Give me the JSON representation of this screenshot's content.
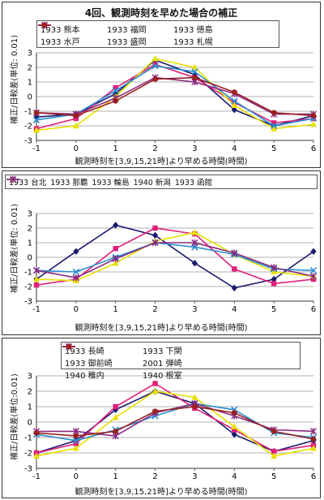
{
  "chart_data": [
    {
      "type": "line",
      "title": "4回、観測時刻を早めた場合の補正",
      "xlabel": "観測時刻を[3,9,15,21時]より早める時間(時間)",
      "ylabel": "補正/日較差(単位: 0.01)",
      "x": [
        -1,
        0,
        1,
        2,
        3,
        4,
        5,
        6
      ],
      "xlim": [
        -1,
        6
      ],
      "ylim": [
        -3,
        3
      ],
      "yticks": [
        -3,
        -2,
        -1,
        0,
        1,
        2,
        3
      ],
      "grid": true,
      "legend_position": "top",
      "series": [
        {
          "name": "1933 熊本",
          "color": "#1a1a6e",
          "marker": "diamond",
          "values": [
            -1.4,
            -1.2,
            0.2,
            2.5,
            1.5,
            -0.9,
            -2.0,
            -1.3
          ]
        },
        {
          "name": "1933 福岡",
          "color": "#e0207a",
          "marker": "square",
          "values": [
            -2.2,
            -1.5,
            0.6,
            2.2,
            1.3,
            -0.4,
            -1.8,
            -1.5
          ]
        },
        {
          "name": "1933 徳島",
          "color": "#e8e000",
          "marker": "triangle",
          "values": [
            -2.3,
            -2.0,
            0.0,
            2.6,
            2.0,
            -0.6,
            -2.2,
            -1.9
          ]
        },
        {
          "name": "1933 水戸",
          "color": "#2a8fd0",
          "marker": "x",
          "values": [
            -1.6,
            -1.2,
            0.4,
            2.1,
            1.7,
            -0.3,
            -2.0,
            -1.5
          ]
        },
        {
          "name": "1933 盛岡",
          "color": "#8a2a7e",
          "marker": "star",
          "values": [
            -1.1,
            -1.2,
            -0.1,
            1.3,
            1.0,
            0.2,
            -1.2,
            -1.2
          ]
        },
        {
          "name": "1933 札幌",
          "color": "#9a2020",
          "marker": "circle",
          "values": [
            -1.1,
            -1.3,
            -0.3,
            1.2,
            1.3,
            0.3,
            -1.1,
            -1.3
          ]
        }
      ]
    },
    {
      "type": "line",
      "title": "",
      "xlabel": "観測時刻を[3,9,15,21時]より早める時間(時間)",
      "ylabel": "補正/日較差(単位: 0.01)",
      "x": [
        -1,
        0,
        1,
        2,
        3,
        4,
        5,
        6
      ],
      "xlim": [
        -1,
        6
      ],
      "ylim": [
        -3,
        3
      ],
      "yticks": [
        -3,
        -2,
        -1,
        0,
        1,
        2,
        3
      ],
      "grid": true,
      "legend_position": "top",
      "series": [
        {
          "name": "1933 台北",
          "color": "#1a1a6e",
          "marker": "diamond",
          "values": [
            -1.5,
            0.4,
            2.2,
            1.5,
            -0.4,
            -2.1,
            -1.5,
            0.4
          ]
        },
        {
          "name": "1933 那覇",
          "color": "#e0207a",
          "marker": "square",
          "values": [
            -1.9,
            -1.5,
            0.6,
            2.0,
            1.6,
            -0.8,
            -1.8,
            -1.5
          ]
        },
        {
          "name": "1933 輪島",
          "color": "#e8e000",
          "marker": "triangle",
          "values": [
            -1.5,
            -1.6,
            -0.4,
            1.1,
            1.7,
            0.2,
            -1.0,
            -1.3
          ]
        },
        {
          "name": "1940 新潟",
          "color": "#2a8fd0",
          "marker": "x",
          "values": [
            -0.9,
            -1.0,
            0.0,
            1.0,
            0.7,
            0.2,
            -0.8,
            -0.9
          ]
        },
        {
          "name": "1933 函館",
          "color": "#8a2a7e",
          "marker": "star",
          "values": [
            -0.9,
            -1.4,
            -0.1,
            1.0,
            1.0,
            0.3,
            -0.7,
            -1.3
          ]
        }
      ]
    },
    {
      "type": "line",
      "title": "",
      "xlabel": "観測時刻を[3,9,15,21時]より早める時間(時間)",
      "ylabel": "補正/日較差(単位:0.01)",
      "x": [
        -1,
        0,
        1,
        2,
        3,
        4,
        5,
        6
      ],
      "xlim": [
        -1,
        6
      ],
      "ylim": [
        -3,
        3
      ],
      "yticks": [
        -3,
        -2,
        -1,
        0,
        1,
        2,
        3
      ],
      "grid": true,
      "legend_position": "top",
      "series": [
        {
          "name": "1933 長崎",
          "color": "#1a1a6e",
          "marker": "diamond",
          "values": [
            -2.0,
            -1.2,
            0.8,
            2.0,
            1.2,
            -0.8,
            -1.9,
            -1.2
          ]
        },
        {
          "name": "1933 下関",
          "color": "#e0207a",
          "marker": "square",
          "values": [
            -2.0,
            -1.4,
            1.0,
            2.5,
            0.9,
            -0.5,
            -1.9,
            -1.5
          ]
        },
        {
          "name": "1933 御前崎",
          "color": "#e8e000",
          "marker": "triangle",
          "values": [
            -2.2,
            -1.7,
            0.3,
            2.0,
            1.6,
            -0.3,
            -2.2,
            -1.7
          ]
        },
        {
          "name": "2001 弾崎",
          "color": "#2a8fd0",
          "marker": "x",
          "values": [
            -0.8,
            -1.2,
            -0.5,
            0.4,
            1.2,
            0.8,
            -0.7,
            -1.0
          ]
        },
        {
          "name": "1940 稚内",
          "color": "#8a2a7e",
          "marker": "star",
          "values": [
            -0.6,
            -0.6,
            -0.9,
            0.6,
            1.2,
            0.4,
            -0.5,
            -0.6
          ]
        },
        {
          "name": "1940 根室",
          "color": "#9a2020",
          "marker": "circle",
          "values": [
            -0.7,
            -0.9,
            -0.6,
            0.7,
            1.0,
            0.6,
            -0.6,
            -1.1
          ]
        }
      ]
    }
  ]
}
